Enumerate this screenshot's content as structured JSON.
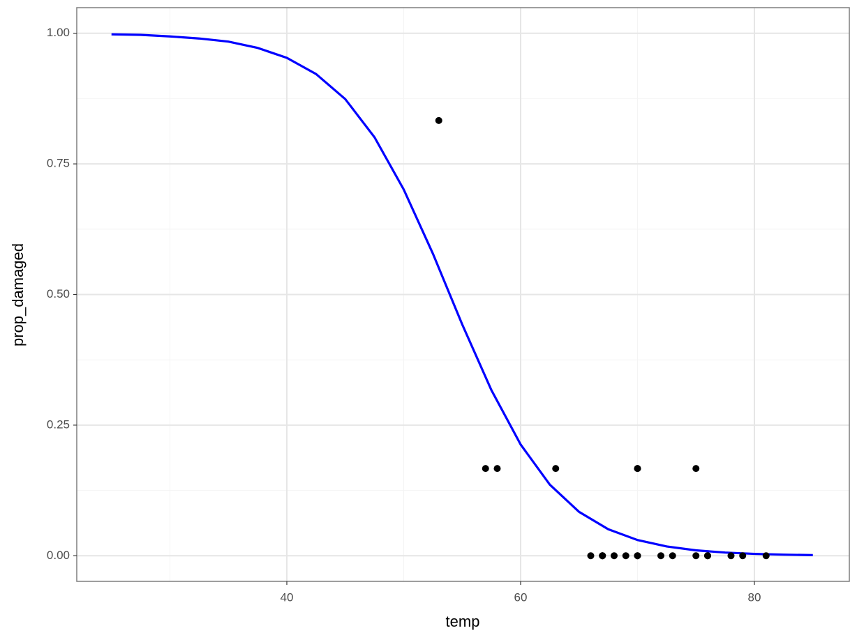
{
  "chart_data": {
    "type": "scatter",
    "x_label": "temp",
    "y_label": "prop_damaged",
    "xlim": [
      22.03,
      88.12
    ],
    "ylim": [
      -0.049,
      1.049
    ],
    "xticks": [
      40,
      60,
      80
    ],
    "yticks": [
      {
        "value": 0,
        "label": "0.00"
      },
      {
        "value": 0.25,
        "label": "0.25"
      },
      {
        "value": 0.5,
        "label": "0.50"
      },
      {
        "value": 0.75,
        "label": "0.75"
      },
      {
        "value": 1,
        "label": "1.00"
      }
    ],
    "x_minor_grid": [
      30,
      50,
      70
    ],
    "y_minor_grid": [
      0.125,
      0.375,
      0.625,
      0.875
    ],
    "grid": true,
    "points": {
      "color": "#000000",
      "x": [
        53,
        57,
        58,
        63,
        66,
        67,
        67,
        67,
        68,
        69,
        70,
        70,
        70,
        70,
        72,
        73,
        75,
        75,
        76,
        76,
        78,
        79,
        81
      ],
      "y": [
        0.833,
        0.167,
        0.167,
        0.167,
        0,
        0,
        0,
        0,
        0,
        0,
        0.167,
        0,
        0.167,
        0,
        0,
        0,
        0,
        0.167,
        0,
        0,
        0,
        0,
        0
      ]
    },
    "fit": {
      "color": "#0000ff",
      "x": [
        25,
        27.5,
        30,
        32.5,
        35,
        37.5,
        40,
        42.5,
        45,
        47.5,
        50,
        52.5,
        55,
        57.5,
        60,
        62.5,
        65,
        67.5,
        70,
        72.5,
        75,
        77.5,
        80,
        82.5,
        85
      ],
      "y": [
        0.998,
        0.997,
        0.994,
        0.99,
        0.984,
        0.972,
        0.953,
        0.922,
        0.874,
        0.801,
        0.701,
        0.578,
        0.443,
        0.317,
        0.213,
        0.136,
        0.084,
        0.0507,
        0.0301,
        0.0178,
        0.0104,
        0.0061,
        0.0036,
        0.0021,
        0.0012
      ]
    }
  }
}
